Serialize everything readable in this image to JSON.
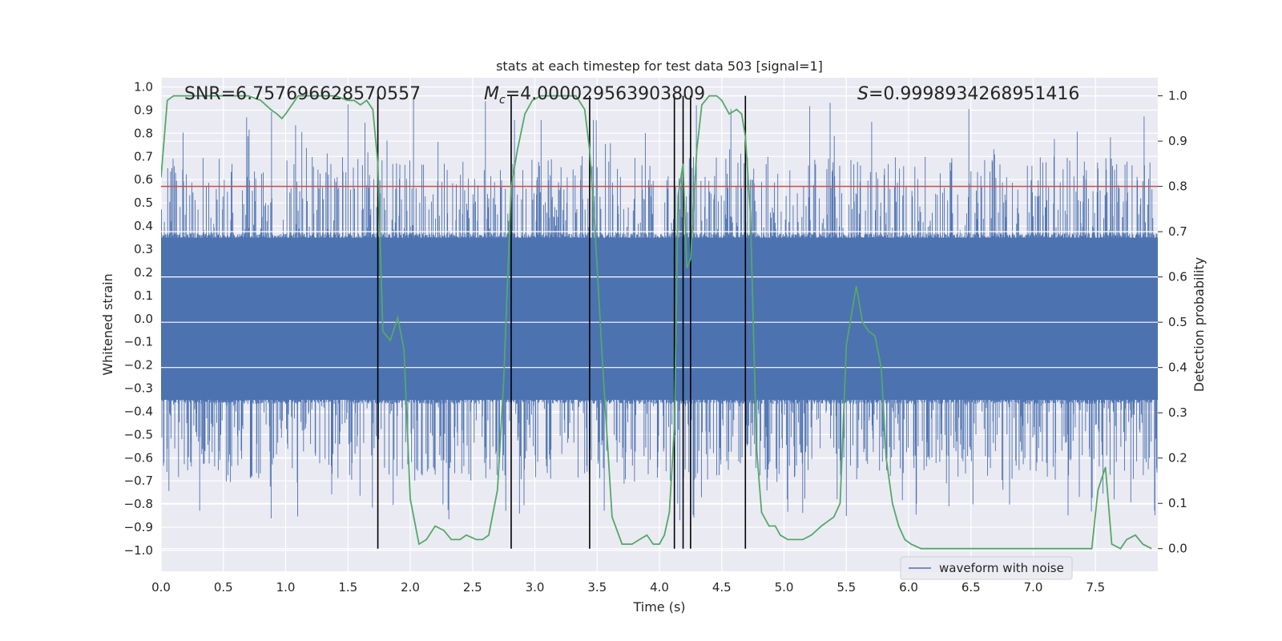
{
  "chart_data": {
    "type": "line",
    "title": "stats at each timestep for test data 503 [signal=1]",
    "xlabel": "Time (s)",
    "ylabel": "Whitened strain",
    "y2label": "Detection probability",
    "xlim": [
      0.0,
      8.0
    ],
    "ylim": [
      -1.09,
      1.04
    ],
    "y2lim": [
      -0.05,
      1.04
    ],
    "xticks": [
      "0.0",
      "0.5",
      "1.0",
      "1.5",
      "2.0",
      "2.5",
      "3.0",
      "3.5",
      "4.0",
      "4.5",
      "5.0",
      "5.5",
      "6.0",
      "6.5",
      "7.0",
      "7.5"
    ],
    "xtick_values": [
      0.0,
      0.5,
      1.0,
      1.5,
      2.0,
      2.5,
      3.0,
      3.5,
      4.0,
      4.5,
      5.0,
      5.5,
      6.0,
      6.5,
      7.0,
      7.5
    ],
    "yticks": [
      "1.0",
      "0.9",
      "0.8",
      "0.7",
      "0.6",
      "0.5",
      "0.4",
      "0.3",
      "0.2",
      "0.1",
      "0.0",
      "−0.1",
      "−0.2",
      "−0.3",
      "−0.4",
      "−0.5",
      "−0.6",
      "−0.7",
      "−0.8",
      "−0.9",
      "−1.0"
    ],
    "ytick_values": [
      1.0,
      0.9,
      0.8,
      0.7,
      0.6,
      0.5,
      0.4,
      0.3,
      0.2,
      0.1,
      0.0,
      -0.1,
      -0.2,
      -0.3,
      -0.4,
      -0.5,
      -0.6,
      -0.7,
      -0.8,
      -0.9,
      -1.0
    ],
    "y2ticks": [
      "1.0",
      "0.9",
      "0.8",
      "0.7",
      "0.6",
      "0.5",
      "0.4",
      "0.3",
      "0.2",
      "0.1",
      "0.0"
    ],
    "y2tick_values": [
      1.0,
      0.9,
      0.8,
      0.7,
      0.6,
      0.5,
      0.4,
      0.3,
      0.2,
      0.1,
      0.0
    ],
    "annotations": {
      "snr": "SNR=6.757696628570557",
      "mc_symbol": "M",
      "mc_sub": "c",
      "mc_value": "=4.000029563903809",
      "s_symbol": "S",
      "s_value": "=0.9998934268951416"
    },
    "legend": {
      "label": "waveform with noise",
      "placement": "lower-right"
    },
    "threshold_line": {
      "probability": 0.8,
      "color": "#c44e52"
    },
    "vertical_lines_x": [
      1.74,
      2.81,
      3.44,
      4.12,
      4.19,
      4.25,
      4.69
    ],
    "series": [
      {
        "name": "waveform with noise",
        "color": "#4c72b0",
        "description_axis": "left",
        "band_abs": 0.35,
        "spike_max": 0.95,
        "spike_min": -0.87
      },
      {
        "name": "detection probability",
        "color": "#55a868",
        "axis": "right",
        "x": [
          0.0,
          0.05,
          0.1,
          0.2,
          0.3,
          0.4,
          0.5,
          0.6,
          0.7,
          0.8,
          0.88,
          0.93,
          0.97,
          1.0,
          1.05,
          1.1,
          1.2,
          1.3,
          1.4,
          1.5,
          1.55,
          1.6,
          1.65,
          1.7,
          1.74,
          1.78,
          1.84,
          1.9,
          1.95,
          2.0,
          2.07,
          2.13,
          2.2,
          2.27,
          2.33,
          2.4,
          2.45,
          2.53,
          2.58,
          2.63,
          2.7,
          2.75,
          2.81,
          2.86,
          2.92,
          2.98,
          3.05,
          3.15,
          3.25,
          3.33,
          3.4,
          3.44,
          3.48,
          3.55,
          3.62,
          3.7,
          3.78,
          3.84,
          3.9,
          3.95,
          4.0,
          4.04,
          4.08,
          4.12,
          4.15,
          4.19,
          4.22,
          4.25,
          4.3,
          4.34,
          4.4,
          4.46,
          4.5,
          4.56,
          4.62,
          4.66,
          4.69,
          4.73,
          4.78,
          4.82,
          4.88,
          4.93,
          4.97,
          5.03,
          5.08,
          5.15,
          5.22,
          5.3,
          5.35,
          5.4,
          5.45,
          5.5,
          5.58,
          5.63,
          5.68,
          5.73,
          5.78,
          5.82,
          5.87,
          5.92,
          5.97,
          6.02,
          6.1,
          6.5,
          6.6,
          6.8,
          6.9,
          7.0,
          7.1,
          7.2,
          7.35,
          7.42,
          7.47,
          7.52,
          7.58,
          7.63,
          7.7,
          7.75,
          7.82,
          7.88,
          7.95
        ],
        "y": [
          0.82,
          0.99,
          1.0,
          1.0,
          1.0,
          1.0,
          1.0,
          1.0,
          1.0,
          0.99,
          0.97,
          0.96,
          0.95,
          0.96,
          0.98,
          1.0,
          1.0,
          1.0,
          1.0,
          0.99,
          0.99,
          0.98,
          0.99,
          0.97,
          0.85,
          0.48,
          0.46,
          0.51,
          0.44,
          0.11,
          0.01,
          0.02,
          0.05,
          0.04,
          0.02,
          0.02,
          0.03,
          0.02,
          0.02,
          0.03,
          0.13,
          0.37,
          0.8,
          0.88,
          0.96,
          0.99,
          1.0,
          1.0,
          1.0,
          1.0,
          0.97,
          0.88,
          0.72,
          0.38,
          0.07,
          0.01,
          0.01,
          0.02,
          0.03,
          0.01,
          0.01,
          0.03,
          0.08,
          0.27,
          0.78,
          0.85,
          0.62,
          0.64,
          0.88,
          0.98,
          1.0,
          1.0,
          0.99,
          0.96,
          0.97,
          0.96,
          0.91,
          0.74,
          0.22,
          0.08,
          0.05,
          0.05,
          0.03,
          0.02,
          0.02,
          0.02,
          0.03,
          0.05,
          0.06,
          0.07,
          0.1,
          0.45,
          0.58,
          0.5,
          0.48,
          0.47,
          0.4,
          0.2,
          0.1,
          0.05,
          0.02,
          0.01,
          0.0,
          0.0,
          0.0,
          0.0,
          0.0,
          0.0,
          0.0,
          0.0,
          0.0,
          0.0,
          0.0,
          0.13,
          0.18,
          0.01,
          0.0,
          0.02,
          0.03,
          0.01,
          0.0
        ]
      }
    ]
  }
}
